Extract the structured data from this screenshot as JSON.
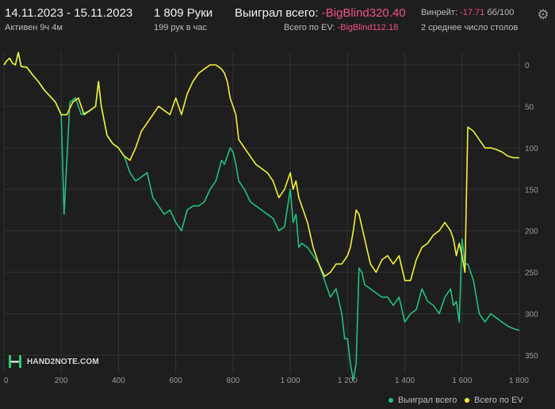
{
  "header": {
    "date_range": "14.11.2023 - 15.11.2023",
    "active": "Активен 9ч 4м",
    "hands": "1 809 Руки",
    "hands_per_hour": "199 рук в час",
    "won_label": "Выиграл всего:",
    "won_value": "-BigBlind320.40",
    "ev_label": "Всего по EV:",
    "ev_value": "-BigBlind112.18",
    "winrate_label": "Винрейт:",
    "winrate_value": "-17.71",
    "winrate_unit": "бб/100",
    "tables": "2 среднее число столов"
  },
  "colors": {
    "background": "#1e1e1e",
    "won": "#22c27e",
    "ev": "#f2f23c",
    "negative": "#f0508c"
  },
  "logo": {
    "text": "HAND2NOTE.COM",
    "icon": "h2n-logo-icon"
  },
  "settings_icon": "gear-icon",
  "chart_data": {
    "type": "line",
    "xlim": [
      0,
      1800
    ],
    "ylim": [
      0,
      370
    ],
    "y_inverted": true,
    "x_ticks": [
      "0",
      "200",
      "400",
      "600",
      "800",
      "1 000",
      "1 200",
      "1 400",
      "1 600",
      "1 800"
    ],
    "y_ticks": [
      "0",
      "50",
      "100",
      "150",
      "200",
      "250",
      "300",
      "350"
    ],
    "grid": true,
    "legend_position": "bottom-right",
    "series": [
      {
        "name": "Выиграл всего",
        "color": "#22c27e",
        "x": [
          0,
          10,
          20,
          30,
          40,
          50,
          60,
          80,
          100,
          120,
          140,
          180,
          200,
          210,
          230,
          250,
          270,
          300,
          320,
          330,
          340,
          360,
          380,
          400,
          420,
          440,
          460,
          480,
          500,
          520,
          540,
          560,
          580,
          600,
          620,
          640,
          660,
          680,
          700,
          720,
          740,
          760,
          770,
          780,
          790,
          800,
          810,
          820,
          840,
          860,
          880,
          900,
          920,
          940,
          960,
          980,
          1000,
          1010,
          1020,
          1030,
          1040,
          1060,
          1080,
          1100,
          1120,
          1140,
          1160,
          1180,
          1190,
          1200,
          1210,
          1220,
          1230,
          1240,
          1250,
          1260,
          1280,
          1300,
          1320,
          1340,
          1360,
          1380,
          1400,
          1420,
          1440,
          1460,
          1480,
          1500,
          1520,
          1540,
          1560,
          1570,
          1580,
          1590,
          1600,
          1610,
          1620,
          1640,
          1660,
          1680,
          1700,
          1720,
          1740,
          1760,
          1780,
          1800
        ],
        "y": [
          0,
          -5,
          -8,
          -2,
          0,
          -15,
          2,
          3,
          12,
          20,
          30,
          45,
          60,
          180,
          45,
          40,
          60,
          55,
          50,
          20,
          50,
          85,
          95,
          100,
          110,
          130,
          140,
          135,
          130,
          160,
          170,
          180,
          175,
          190,
          200,
          175,
          170,
          170,
          165,
          150,
          140,
          115,
          120,
          110,
          100,
          105,
          120,
          140,
          150,
          165,
          170,
          175,
          180,
          185,
          200,
          195,
          150,
          190,
          180,
          220,
          215,
          220,
          230,
          240,
          260,
          280,
          270,
          300,
          330,
          330,
          360,
          380,
          360,
          245,
          250,
          265,
          270,
          275,
          280,
          280,
          290,
          280,
          310,
          300,
          295,
          270,
          285,
          290,
          300,
          280,
          270,
          290,
          285,
          310,
          210,
          240,
          240,
          260,
          300,
          310,
          300,
          305,
          310,
          315,
          318,
          320
        ]
      },
      {
        "name": "Всего по EV",
        "color": "#f2f23c",
        "x": [
          0,
          10,
          20,
          30,
          40,
          50,
          60,
          80,
          100,
          120,
          140,
          180,
          200,
          220,
          240,
          260,
          280,
          300,
          320,
          330,
          340,
          360,
          380,
          400,
          420,
          440,
          460,
          480,
          500,
          520,
          540,
          560,
          580,
          600,
          620,
          640,
          660,
          680,
          700,
          720,
          740,
          760,
          770,
          780,
          790,
          800,
          810,
          820,
          840,
          860,
          880,
          900,
          920,
          940,
          960,
          980,
          1000,
          1010,
          1020,
          1030,
          1040,
          1060,
          1080,
          1100,
          1120,
          1140,
          1160,
          1180,
          1190,
          1200,
          1210,
          1220,
          1230,
          1240,
          1250,
          1260,
          1280,
          1300,
          1320,
          1340,
          1360,
          1380,
          1400,
          1420,
          1440,
          1460,
          1480,
          1500,
          1520,
          1540,
          1560,
          1570,
          1580,
          1590,
          1600,
          1610,
          1620,
          1640,
          1660,
          1680,
          1700,
          1720,
          1740,
          1760,
          1780,
          1800
        ],
        "y": [
          0,
          -5,
          -8,
          -2,
          0,
          -15,
          2,
          3,
          12,
          20,
          30,
          45,
          60,
          60,
          45,
          40,
          60,
          55,
          50,
          20,
          50,
          85,
          95,
          100,
          110,
          115,
          100,
          80,
          70,
          60,
          50,
          55,
          60,
          40,
          60,
          35,
          20,
          10,
          5,
          0,
          0,
          5,
          10,
          20,
          40,
          50,
          60,
          90,
          100,
          110,
          120,
          125,
          130,
          140,
          160,
          150,
          130,
          150,
          140,
          160,
          170,
          190,
          220,
          240,
          255,
          250,
          240,
          240,
          235,
          230,
          220,
          200,
          175,
          180,
          195,
          210,
          240,
          250,
          235,
          230,
          240,
          230,
          260,
          260,
          235,
          220,
          215,
          205,
          200,
          190,
          200,
          210,
          230,
          215,
          230,
          250,
          75,
          80,
          90,
          100,
          100,
          102,
          105,
          110,
          112,
          112
        ]
      }
    ]
  }
}
